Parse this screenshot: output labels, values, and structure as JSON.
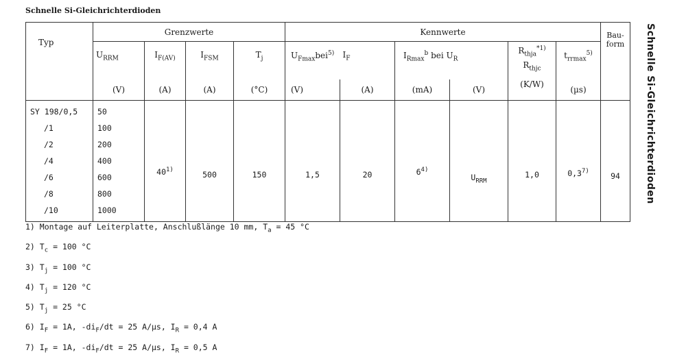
{
  "title": "Schnelle Si-Gleichrichterdioden",
  "side_title": "Schnelle Si-Gleichrichterdioden",
  "header": {
    "typ": "Typ",
    "grenzwerte": "Grenzwerte",
    "kennwerte": "Kennwerte",
    "bauform": "Bau-form",
    "cols": [
      {
        "sym": "U",
        "sub": "RRM",
        "sup": "",
        "unit": "(V)"
      },
      {
        "sym": "I",
        "sub": "F(AV)",
        "sup": "",
        "unit": "(A)"
      },
      {
        "sym": "I",
        "sub": "FSM",
        "sup": "",
        "unit": "(A)"
      },
      {
        "sym": "T",
        "sub": "j",
        "sup": "",
        "unit": "(°C)"
      },
      {
        "sym": "U",
        "sub": "Fmax",
        "sup": "5)",
        "extra": "bei",
        "unit": "(V)"
      },
      {
        "sym": "I",
        "sub": "F",
        "sup": "",
        "unit": "(A)"
      },
      {
        "sym": "I",
        "sub": "Rmax",
        "sup": "b",
        "extra": "bei U",
        "extra_sub": "R",
        "unit": "(mA)"
      },
      {
        "unit": "(V)"
      },
      {
        "sym": "R",
        "sub": "thja",
        "sup": "*1)",
        "sym2": "R",
        "sub2": "thjc",
        "unit": "(K/W)"
      },
      {
        "sym": "t",
        "sub": "rrmax",
        "sup": "5)",
        "unit": "(µs)"
      }
    ]
  },
  "rows": {
    "types": [
      "SY 198/0,5",
      "/1",
      "/2",
      "/4",
      "/6",
      "/8",
      "/10"
    ],
    "urrm": [
      "50",
      "100",
      "200",
      "400",
      "600",
      "800",
      "1000"
    ],
    "if_av": "40",
    "if_av_note": "1)",
    "ifsm": "500",
    "tj": "150",
    "ufmax": "1,5",
    "if": "20",
    "irmax": "6",
    "irmax_note": "4)",
    "ur_sym": "U",
    "ur_sub": "RRM",
    "rth": "1,0",
    "trr": "0,3",
    "trr_note": "7)",
    "bauform": "94"
  },
  "footnotes": [
    {
      "n": "1)",
      "a": "Montage auf Leiterplatte, Anschlußlänge 10 mm, T",
      "s": "a",
      "b": " = 45 °C"
    },
    {
      "n": "2)",
      "a": "T",
      "s": "c",
      "b": " = 100 °C"
    },
    {
      "n": "3)",
      "a": "T",
      "s": "j",
      "b": " = 100 °C"
    },
    {
      "n": "4)",
      "a": "T",
      "s": "j",
      "b": " = 120 °C"
    },
    {
      "n": "5)",
      "a": "T",
      "s": "j",
      "b": " = 25 °C"
    },
    {
      "n": "6)",
      "a": "I",
      "s": "F",
      "b": " = 1A, -di",
      "s2": "F",
      "c": "/dt = 25 A/µs, I",
      "s3": "R",
      "d": " = 0,4 A"
    },
    {
      "n": "7)",
      "a": "I",
      "s": "F",
      "b": " = 1A, -di",
      "s2": "F",
      "c": "/dt = 25 A/µs, I",
      "s3": "R",
      "d": " = 0,5 A"
    }
  ]
}
